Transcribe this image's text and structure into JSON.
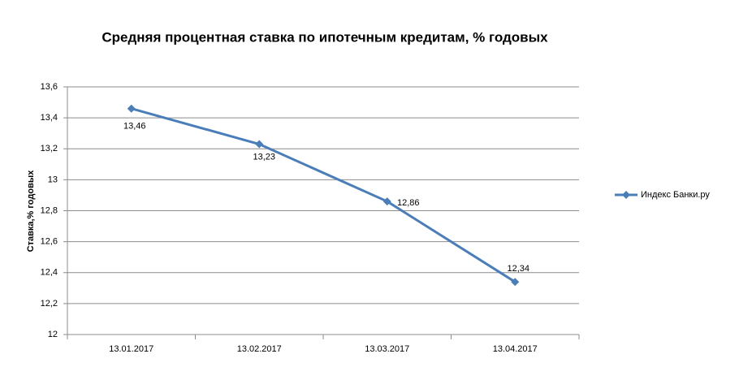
{
  "chart_data": {
    "type": "line",
    "title": "Средняя процентная  ставка по ипотечным кредитам, % годовых",
    "y_label": "Ставка,%  годовых",
    "categories": [
      "13.01.2017",
      "13.02.2017",
      "13.03.2017",
      "13.04.2017"
    ],
    "series": [
      {
        "name": "Индекс  Банки.ру",
        "color": "#4a7ebb",
        "values": [
          13.46,
          13.23,
          12.86,
          12.34
        ],
        "value_labels": [
          "13,46",
          "13,23",
          "12,86",
          "12,34"
        ]
      }
    ],
    "ylim": [
      12,
      13.6
    ],
    "yticks": [
      12,
      {
        "value": 12.2,
        "label": "12,2"
      },
      {
        "value": 12.4,
        "label": "12,4"
      },
      {
        "value": 12.6,
        "label": "12,6"
      },
      {
        "value": 12.8,
        "label": "12,8"
      },
      13,
      {
        "value": 13.2,
        "label": "13,2"
      },
      {
        "value": 13.4,
        "label": "13,4"
      },
      {
        "value": 13.6,
        "label": "13,6"
      }
    ],
    "grid": true,
    "legend": "right"
  }
}
